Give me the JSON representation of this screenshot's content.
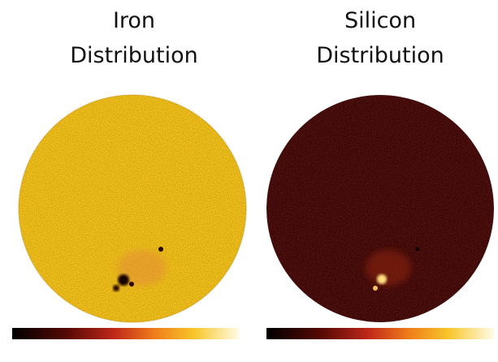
{
  "panels": [
    {
      "title_lines": [
        "Iron",
        "Distribution"
      ]
    },
    {
      "title_lines": [
        "Silicon",
        "Distribution"
      ]
    }
  ]
}
